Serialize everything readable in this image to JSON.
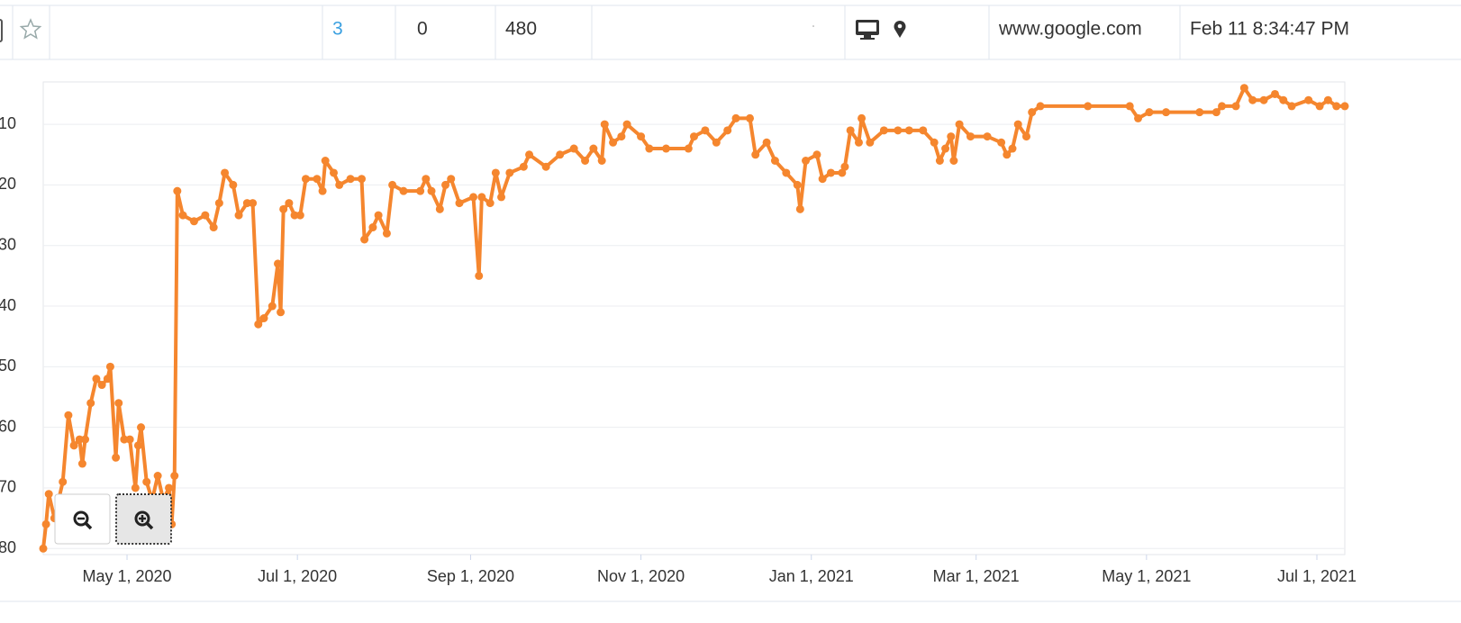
{
  "table_row": {
    "cells": [
      3,
      0,
      480,
      "www.google.com",
      "Feb 11 8:34:47 PM"
    ]
  },
  "chart_data": {
    "type": "line",
    "x": [
      "2020-04-01",
      "2020-04-02",
      "2020-04-03",
      "2020-04-05",
      "2020-04-08",
      "2020-04-10",
      "2020-04-12",
      "2020-04-14",
      "2020-04-15",
      "2020-04-16",
      "2020-04-18",
      "2020-04-20",
      "2020-04-22",
      "2020-04-24",
      "2020-04-25",
      "2020-04-27",
      "2020-04-28",
      "2020-04-30",
      "2020-05-02",
      "2020-05-04",
      "2020-05-05",
      "2020-05-06",
      "2020-05-08",
      "2020-05-10",
      "2020-05-12",
      "2020-05-14",
      "2020-05-16",
      "2020-05-17",
      "2020-05-18",
      "2020-05-19",
      "2020-05-21",
      "2020-05-25",
      "2020-05-29",
      "2020-06-01",
      "2020-06-03",
      "2020-06-05",
      "2020-06-08",
      "2020-06-10",
      "2020-06-13",
      "2020-06-15",
      "2020-06-17",
      "2020-06-19",
      "2020-06-22",
      "2020-06-24",
      "2020-06-25",
      "2020-06-26",
      "2020-06-28",
      "2020-06-30",
      "2020-07-02",
      "2020-07-04",
      "2020-07-08",
      "2020-07-10",
      "2020-07-11",
      "2020-07-14",
      "2020-07-16",
      "2020-07-20",
      "2020-07-24",
      "2020-07-25",
      "2020-07-28",
      "2020-07-30",
      "2020-08-02",
      "2020-08-04",
      "2020-08-08",
      "2020-08-14",
      "2020-08-16",
      "2020-08-18",
      "2020-08-21",
      "2020-08-23",
      "2020-08-25",
      "2020-08-28",
      "2020-09-02",
      "2020-09-04",
      "2020-09-05",
      "2020-09-08",
      "2020-09-10",
      "2020-09-12",
      "2020-09-15",
      "2020-09-20",
      "2020-09-22",
      "2020-09-28",
      "2020-10-03",
      "2020-10-08",
      "2020-10-12",
      "2020-10-15",
      "2020-10-18",
      "2020-10-19",
      "2020-10-22",
      "2020-10-25",
      "2020-10-27",
      "2020-11-01",
      "2020-11-04",
      "2020-11-10",
      "2020-11-18",
      "2020-11-20",
      "2020-11-24",
      "2020-11-28",
      "2020-12-02",
      "2020-12-05",
      "2020-12-10",
      "2020-12-12",
      "2020-12-16",
      "2020-12-19",
      "2020-12-23",
      "2020-12-27",
      "2020-12-28",
      "2020-12-30",
      "2021-01-03",
      "2021-01-05",
      "2021-01-08",
      "2021-01-12",
      "2021-01-13",
      "2021-01-15",
      "2021-01-18",
      "2021-01-19",
      "2021-01-22",
      "2021-01-27",
      "2021-02-01",
      "2021-02-05",
      "2021-02-10",
      "2021-02-14",
      "2021-02-16",
      "2021-02-18",
      "2021-02-20",
      "2021-02-21",
      "2021-02-23",
      "2021-02-27",
      "2021-03-05",
      "2021-03-10",
      "2021-03-12",
      "2021-03-14",
      "2021-03-16",
      "2021-03-19",
      "2021-03-21",
      "2021-03-24",
      "2021-04-10",
      "2021-04-25",
      "2021-04-28",
      "2021-05-02",
      "2021-05-08",
      "2021-05-20",
      "2021-05-26",
      "2021-05-28",
      "2021-06-02",
      "2021-06-05",
      "2021-06-08",
      "2021-06-12",
      "2021-06-16",
      "2021-06-19",
      "2021-06-22",
      "2021-06-28",
      "2021-07-02",
      "2021-07-05",
      "2021-07-08",
      "2021-07-11"
    ],
    "series": [
      {
        "color": "#f5862e",
        "values": [
          80,
          76,
          71,
          75,
          69,
          58,
          63,
          62,
          66,
          62,
          56,
          52,
          53,
          52,
          50,
          65,
          56,
          62,
          62,
          70,
          63,
          60,
          69,
          72,
          68,
          72,
          70,
          76,
          68,
          21,
          25,
          26,
          25,
          27,
          23,
          18,
          20,
          25,
          23,
          23,
          43,
          42,
          40,
          33,
          41,
          24,
          23,
          25,
          25,
          19,
          19,
          21,
          16,
          18,
          20,
          19,
          19,
          29,
          27,
          25,
          28,
          20,
          21,
          21,
          19,
          21,
          24,
          20,
          19,
          23,
          22,
          35,
          22,
          23,
          18,
          22,
          18,
          17,
          15,
          17,
          15,
          14,
          16,
          14,
          16,
          10,
          13,
          12,
          10,
          12,
          14,
          14,
          14,
          12,
          11,
          13,
          11,
          9,
          9,
          15,
          13,
          16,
          18,
          20,
          24,
          16,
          15,
          19,
          18,
          18,
          17,
          11,
          13,
          9,
          13,
          11,
          11,
          11,
          11,
          13,
          16,
          14,
          12,
          16,
          10,
          12,
          12,
          13,
          15,
          14,
          10,
          12,
          8,
          7,
          7,
          7,
          9,
          8,
          8,
          8,
          8,
          7,
          7,
          4,
          6,
          6,
          5,
          6,
          7,
          6,
          7,
          6,
          7,
          7
        ]
      }
    ],
    "xlim": [
      "2020-04-01",
      "2021-07-11"
    ],
    "xticks": [
      {
        "value": "2020-05-01",
        "label": "May 1, 2020"
      },
      {
        "value": "2020-07-01",
        "label": "Jul 1, 2020"
      },
      {
        "value": "2020-09-01",
        "label": "Sep 1, 2020"
      },
      {
        "value": "2020-11-01",
        "label": "Nov 1, 2020"
      },
      {
        "value": "2021-01-01",
        "label": "Jan 1, 2021"
      },
      {
        "value": "2021-03-01",
        "label": "Mar 1, 2021"
      },
      {
        "value": "2021-05-01",
        "label": "May 1, 2021"
      },
      {
        "value": "2021-07-01",
        "label": "Jul 1, 2021"
      }
    ],
    "ylim": [
      3,
      81
    ],
    "y_reversed": true,
    "yticks": [
      10,
      20,
      30,
      40,
      50,
      60,
      70,
      80
    ],
    "grid": true
  }
}
